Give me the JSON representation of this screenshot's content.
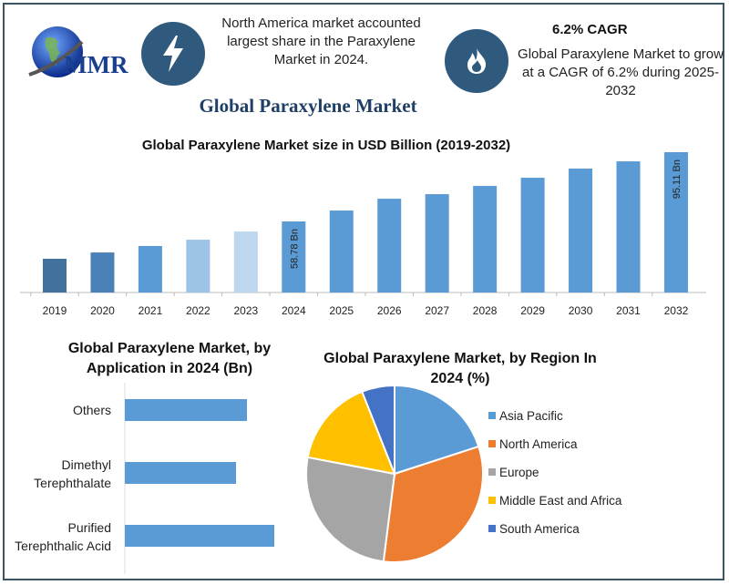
{
  "header": {
    "logo_text": "MMR",
    "info1": "North America market accounted largest share in the Paraxylene Market in 2024.",
    "cagr_title": "6.2% CAGR",
    "cagr_text": "Global Paraxylene Market to grow at a CAGR of 6.2% during 2025-2032",
    "icons": [
      "lightning-icon",
      "flame-icon"
    ],
    "main_title": "Global Paraxylene Market"
  },
  "chart_data": [
    {
      "type": "bar",
      "title": "Global Paraxylene Market size in USD Billion (2019-2032)",
      "categories": [
        "2019",
        "2020",
        "2021",
        "2022",
        "2023",
        "2024",
        "2025",
        "2026",
        "2027",
        "2028",
        "2029",
        "2030",
        "2031",
        "2032"
      ],
      "values": [
        39.2,
        42.5,
        45.9,
        49.2,
        53.5,
        58.78,
        64.5,
        70.7,
        73.1,
        77.4,
        81.7,
        86.5,
        90.3,
        95.11
      ],
      "data_labels": {
        "2024": "58.78 Bn",
        "2032": "95.11 Bn"
      },
      "colors": [
        "#41719c",
        "#4a82b8",
        "#5b9bd5",
        "#9dc3e6",
        "#bdd7ee",
        "#5b9bd5",
        "#5b9bd5",
        "#5b9bd5",
        "#5b9bd5",
        "#5b9bd5",
        "#5b9bd5",
        "#5b9bd5",
        "#5b9bd5",
        "#5b9bd5"
      ],
      "ylim": [
        21.5,
        100
      ],
      "grid": false
    },
    {
      "type": "bar",
      "orientation": "horizontal",
      "title": "Global Paraxylene Market, by Application in 2024 (Bn)",
      "categories": [
        "Others",
        "Dimethyl Terephthalate",
        "Purified Terephthalic Acid"
      ],
      "values": [
        13.4,
        12.2,
        16.4
      ],
      "xlim": [
        0,
        20
      ],
      "color": "#5b9bd5",
      "grid": false
    },
    {
      "type": "pie",
      "title": "Global Paraxylene Market, by Region In 2024 (%)",
      "categories": [
        "Asia Pacific",
        "North America",
        "Europe",
        "Middle East and Africa",
        "South America"
      ],
      "values": [
        20,
        32,
        26,
        16,
        6
      ],
      "colors": [
        "#5b9bd5",
        "#ed7d31",
        "#a5a5a5",
        "#ffc000",
        "#4472c4"
      ],
      "legend": "right"
    }
  ]
}
